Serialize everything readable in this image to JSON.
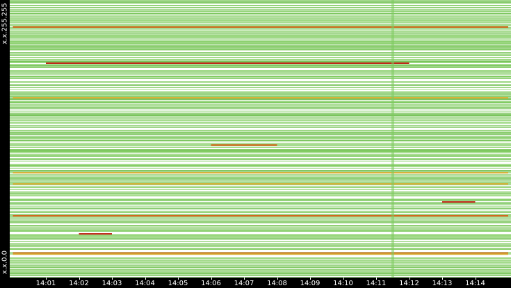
{
  "chart_data": {
    "type": "heatmap",
    "title": "",
    "xlabel": "",
    "ylabel": "",
    "x_ticks": [
      "14:01",
      "14:02",
      "14:03",
      "14:04",
      "14:05",
      "14:06",
      "14:07",
      "14:08",
      "14:09",
      "14:10",
      "14:11",
      "14:12",
      "14:13",
      "14:14"
    ],
    "y_ticks": [
      "x.x.255.255",
      "x.x.0.0"
    ],
    "y_range": [
      "x.x.0.0",
      "x.x.255.255"
    ],
    "grid": false,
    "legend": "none",
    "color_scale": {
      "empty": "#ffffff",
      "low": "#7ecb5e",
      "mid": "#d6b23a",
      "high": "#d2691e",
      "max": "#c0281a"
    },
    "hot_bands": [
      {
        "y_fraction": 0.909,
        "start": "14:00",
        "end": "14:15",
        "level": "high"
      },
      {
        "y_fraction": 0.913,
        "start": "14:00",
        "end": "14:15",
        "level": "mid"
      },
      {
        "y_fraction": 0.775,
        "start": "14:00",
        "end": "14:15",
        "level": "high"
      },
      {
        "y_fraction": 0.225,
        "start": "14:01",
        "end": "14:12",
        "level": "max"
      },
      {
        "y_fraction": 0.095,
        "start": "14:00",
        "end": "14:15",
        "level": "high"
      },
      {
        "y_fraction": 0.52,
        "start": "14:06",
        "end": "14:08",
        "level": "high"
      },
      {
        "y_fraction": 0.725,
        "start": "14:13",
        "end": "14:14",
        "level": "max"
      },
      {
        "y_fraction": 0.66,
        "start": "14:00",
        "end": "14:15",
        "level": "mid"
      },
      {
        "y_fraction": 0.62,
        "start": "14:00",
        "end": "14:15",
        "level": "mid"
      },
      {
        "y_fraction": 0.84,
        "start": "14:02",
        "end": "14:03",
        "level": "max"
      },
      {
        "y_fraction": 0.35,
        "start": "14:00",
        "end": "14:15",
        "level": "mid"
      }
    ],
    "dense_columns": [
      "14:11"
    ]
  }
}
